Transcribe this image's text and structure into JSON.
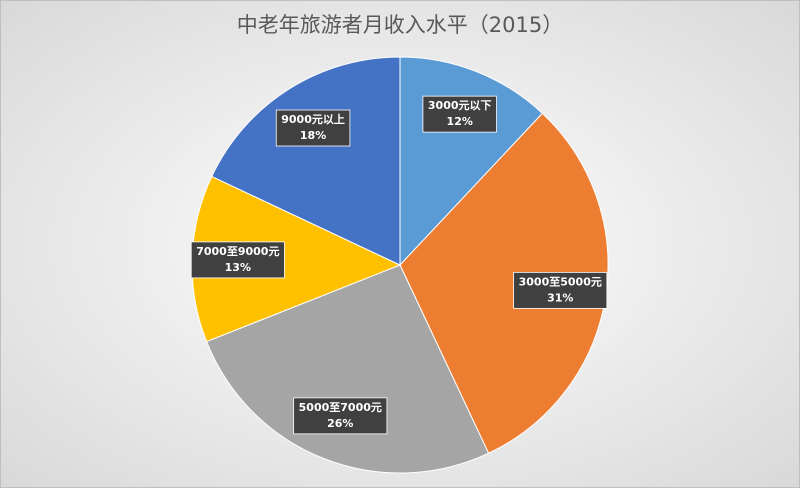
{
  "chart_data": {
    "type": "pie",
    "title": "中老年旅游者月收入水平（2015）",
    "categories": [
      "3000元以下",
      "3000至5000元",
      "5000至7000元",
      "7000至9000元",
      "9000元以上"
    ],
    "values": [
      12,
      31,
      26,
      13,
      18
    ],
    "value_labels": [
      "12%",
      "31%",
      "26%",
      "13%",
      "18%"
    ],
    "colors": [
      "#5b9bd5",
      "#ed7d31",
      "#a5a5a5",
      "#ffc000",
      "#4472c4"
    ]
  }
}
